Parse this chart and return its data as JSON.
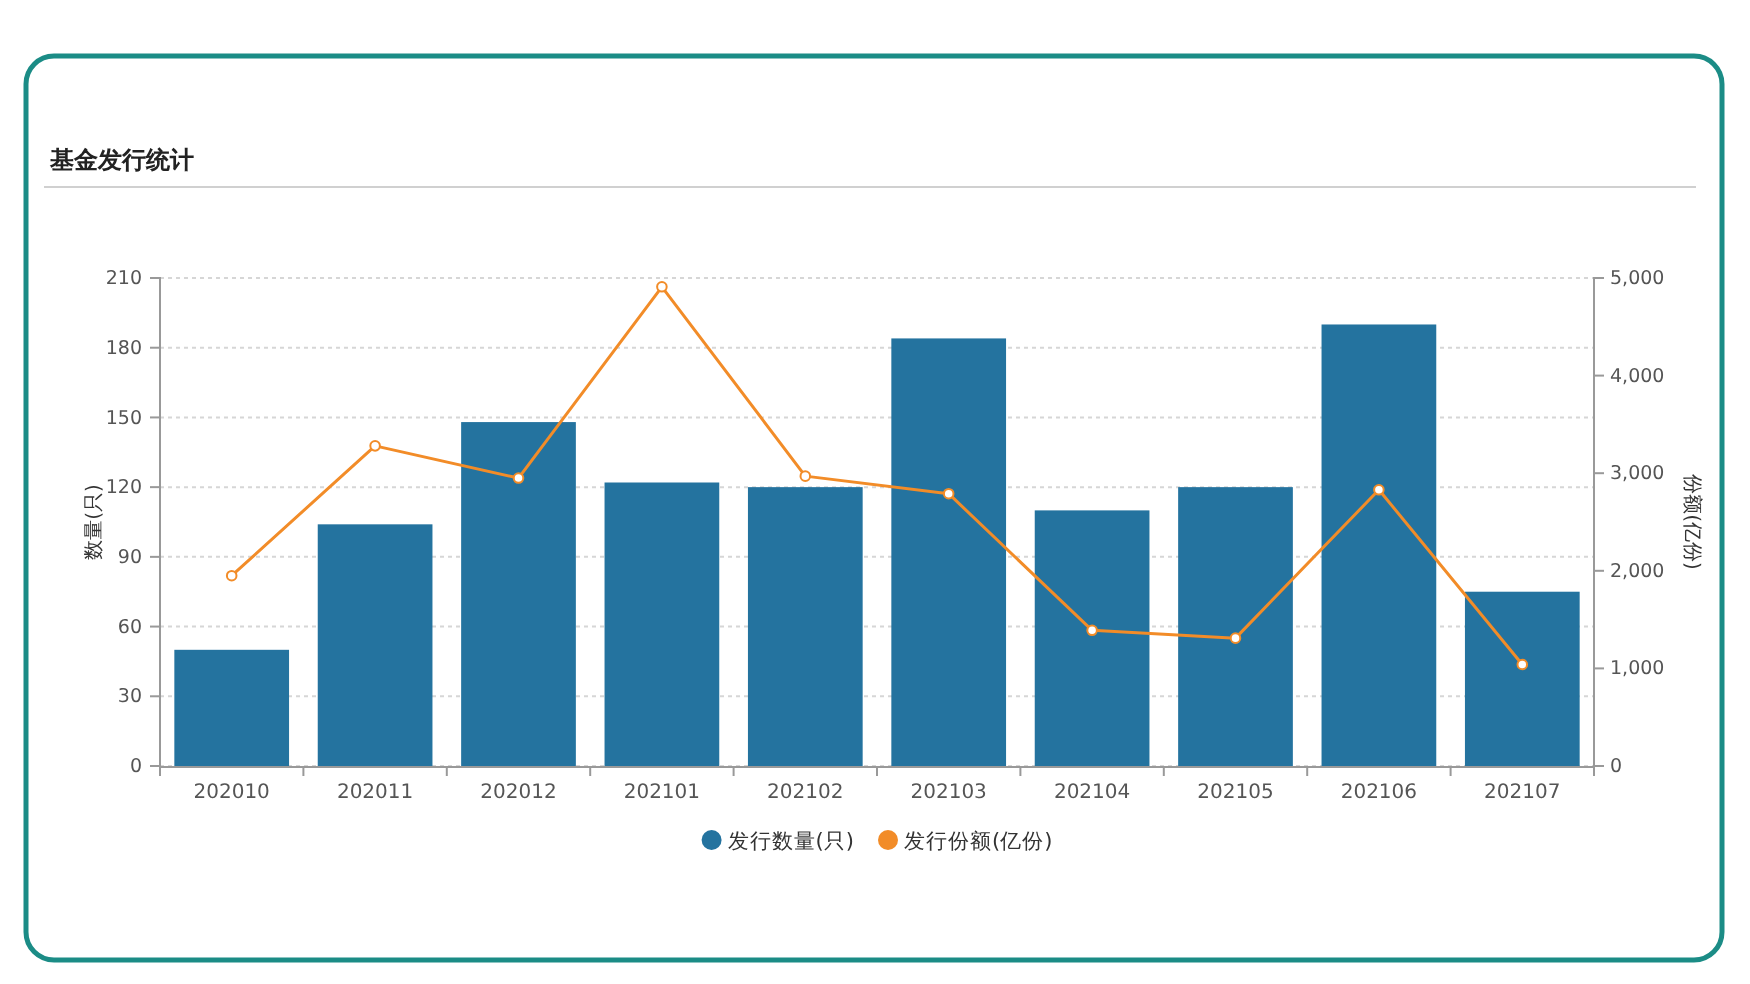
{
  "chart_data": {
    "type": "bar",
    "title": "基金发行统计",
    "ylabel": "数量(只)",
    "y2label": "份额(亿份)",
    "categories": [
      "202010",
      "202011",
      "202012",
      "202101",
      "202102",
      "202103",
      "202104",
      "202105",
      "202106",
      "202107"
    ],
    "series": [
      {
        "name": "发行数量(只)",
        "color": "#24739f",
        "values": [
          50,
          104,
          148,
          122,
          120,
          184,
          110,
          120,
          190,
          75
        ]
      },
      {
        "name": "发行份额(亿份)",
        "type": "line",
        "axis": "y2",
        "color": "#f28c28",
        "values": [
          1950,
          3280,
          2950,
          4910,
          2970,
          2790,
          1390,
          1310,
          2830,
          1040
        ]
      }
    ],
    "ylim": [
      0,
      210
    ],
    "yticks": [
      0,
      30,
      60,
      90,
      120,
      150,
      180,
      210
    ],
    "y2lim": [
      0,
      5000
    ],
    "y2ticks": [
      0,
      {
        "value": 1000,
        "label": "1,000"
      },
      {
        "value": 2000,
        "label": "2,000"
      },
      {
        "value": 3000,
        "label": "3,000"
      },
      {
        "value": 4000,
        "label": "4,000"
      },
      {
        "value": 5000,
        "label": "5,000"
      }
    ],
    "grid": "y",
    "legend": "bottom",
    "marker": "circle"
  }
}
